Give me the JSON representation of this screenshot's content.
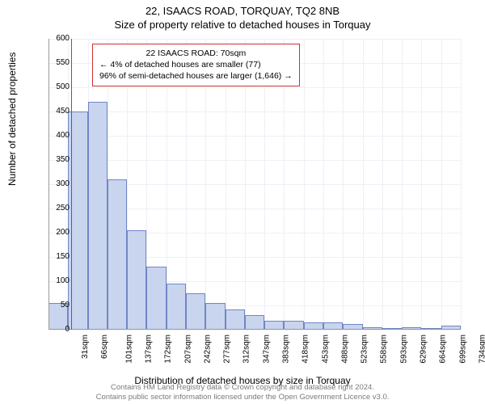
{
  "titles": {
    "line1": "22, ISAACS ROAD, TORQUAY, TQ2 8NB",
    "line2": "Size of property relative to detached houses in Torquay"
  },
  "chart": {
    "type": "histogram",
    "ylabel": "Number of detached properties",
    "xlabel": "Distribution of detached houses by size in Torquay",
    "ylim": [
      0,
      600
    ],
    "ytick_step": 50,
    "x_categories": [
      "31sqm",
      "66sqm",
      "101sqm",
      "137sqm",
      "172sqm",
      "207sqm",
      "242sqm",
      "277sqm",
      "312sqm",
      "347sqm",
      "383sqm",
      "418sqm",
      "453sqm",
      "488sqm",
      "523sqm",
      "558sqm",
      "593sqm",
      "629sqm",
      "664sqm",
      "699sqm",
      "734sqm"
    ],
    "values": [
      55,
      450,
      470,
      310,
      205,
      130,
      95,
      75,
      55,
      42,
      30,
      18,
      18,
      15,
      15,
      12,
      5,
      3,
      5,
      3,
      8
    ],
    "bar_fill": "#c9d5ee",
    "bar_stroke": "#6f86c4",
    "background_color": "#ffffff",
    "grid_color": "#eef0f7",
    "axis_color": "#999999",
    "marker": {
      "x_index": 1,
      "color": "#d03030"
    },
    "font_size_axis": 10,
    "font_size_label": 12
  },
  "annotation": {
    "border_color": "#d03030",
    "lines": {
      "l1": "22 ISAACS ROAD: 70sqm",
      "l2": "← 4% of detached houses are smaller (77)",
      "l3": "96% of semi-detached houses are larger (1,646) →"
    }
  },
  "footer": {
    "l1": "Contains HM Land Registry data © Crown copyright and database right 2024.",
    "l2": "Contains public sector information licensed under the Open Government Licence v3.0."
  }
}
